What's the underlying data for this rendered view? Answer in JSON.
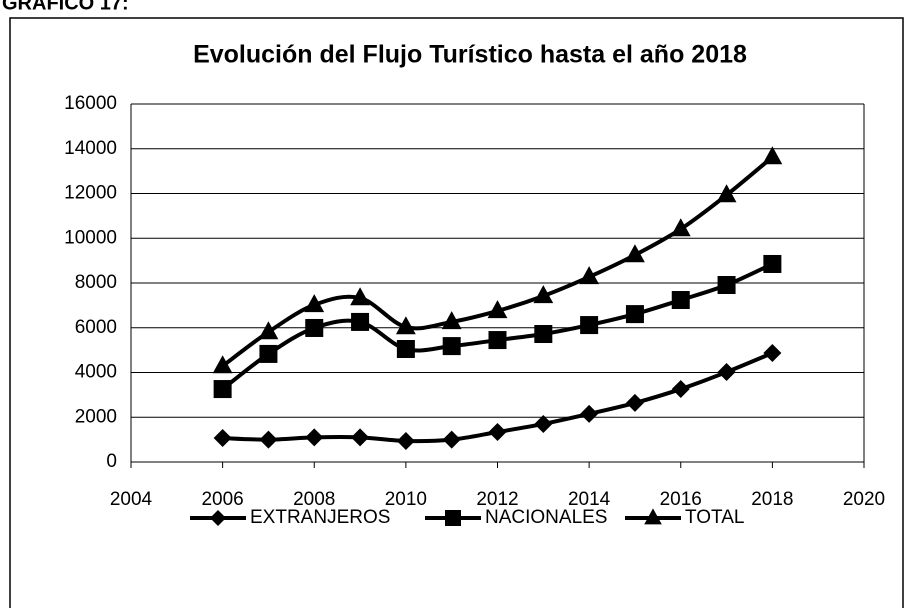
{
  "caption": "GRAFICO 17:",
  "chart_data": {
    "type": "line",
    "title": "Evolución del Flujo Turístico hasta el año 2018",
    "x": [
      2006,
      2007,
      2008,
      2009,
      2010,
      2011,
      2012,
      2013,
      2014,
      2015,
      2016,
      2017,
      2018
    ],
    "series": [
      {
        "name": "EXTRANJEROS",
        "color": "#000000",
        "marker": "diamond",
        "values": [
          1070,
          1000,
          1100,
          1100,
          940,
          1000,
          1340,
          1700,
          2150,
          2640,
          3260,
          4020,
          4870
        ]
      },
      {
        "name": "NACIONALES",
        "color": "#000000",
        "marker": "square",
        "values": [
          3260,
          4830,
          5990,
          6260,
          5050,
          5180,
          5450,
          5720,
          6120,
          6610,
          7240,
          7910,
          8850
        ]
      },
      {
        "name": "TOTAL",
        "color": "#000000",
        "marker": "triangle",
        "values": [
          4290,
          5810,
          7020,
          7330,
          6030,
          6260,
          6750,
          7420,
          8270,
          9250,
          10410,
          11930,
          13630
        ]
      }
    ],
    "xlim": [
      2004,
      2020
    ],
    "xticks": [
      2004,
      2006,
      2008,
      2010,
      2012,
      2014,
      2016,
      2018,
      2020
    ],
    "ylim": [
      0,
      16000
    ],
    "yticks": [
      0,
      2000,
      4000,
      6000,
      8000,
      10000,
      12000,
      14000,
      16000
    ],
    "grid": true,
    "smooth": true,
    "legend": "bottom"
  }
}
